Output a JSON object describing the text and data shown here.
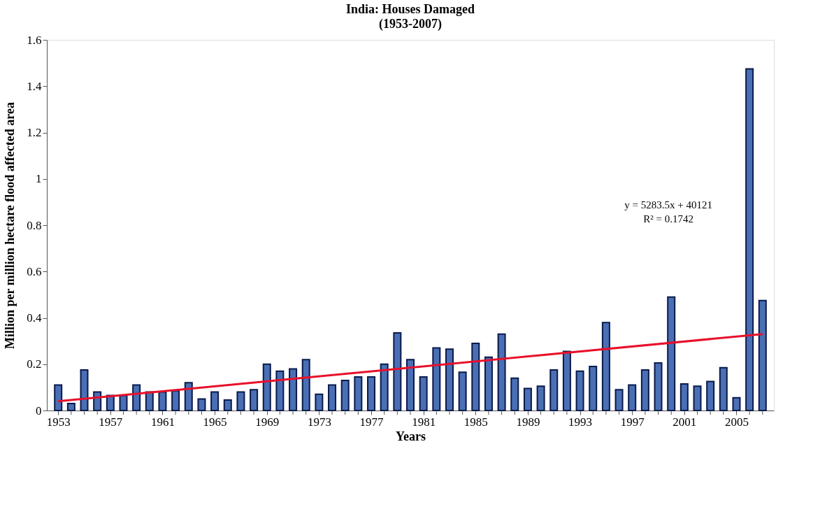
{
  "chart_data": {
    "type": "bar",
    "title": "India: Houses Damaged",
    "subtitle": "(1953-2007)",
    "xlabel": "Years",
    "ylabel": "Million per million hectare flood affected area",
    "x": [
      1953,
      1954,
      1955,
      1956,
      1957,
      1958,
      1959,
      1960,
      1961,
      1962,
      1963,
      1964,
      1965,
      1966,
      1967,
      1968,
      1969,
      1970,
      1971,
      1972,
      1973,
      1974,
      1975,
      1976,
      1977,
      1978,
      1979,
      1980,
      1981,
      1982,
      1983,
      1984,
      1985,
      1986,
      1987,
      1988,
      1989,
      1990,
      1991,
      1992,
      1993,
      1994,
      1995,
      1996,
      1997,
      1998,
      1999,
      2000,
      2001,
      2002,
      2003,
      2004,
      2005,
      2006,
      2007
    ],
    "series": [
      {
        "color": "#4a6fb5",
        "values": [
          0.11,
          0.03,
          0.175,
          0.08,
          0.065,
          0.065,
          0.11,
          0.08,
          0.08,
          0.085,
          0.12,
          0.05,
          0.08,
          0.045,
          0.08,
          0.09,
          0.2,
          0.17,
          0.18,
          0.22,
          0.07,
          0.11,
          0.13,
          0.145,
          0.145,
          0.2,
          0.335,
          0.22,
          0.145,
          0.27,
          0.265,
          0.165,
          0.29,
          0.23,
          0.33,
          0.14,
          0.095,
          0.105,
          0.175,
          0.255,
          0.17,
          0.19,
          0.38,
          0.09,
          0.11,
          0.175,
          0.205,
          0.49,
          0.115,
          0.105,
          0.125,
          0.185,
          0.055,
          1.475,
          0.475
        ]
      },
      {
        "type": "line",
        "color": "#e8102a",
        "x": [
          1953,
          2007
        ],
        "values": [
          0.04,
          0.33
        ]
      }
    ],
    "annotations": [
      "y = 5283.5x + 40121",
      "R² = 0.1742"
    ],
    "xlim": [
      1952.4,
      2007.6
    ],
    "xticks": [
      1953,
      {
        "value": 1954,
        "label": null
      },
      {
        "value": 1955,
        "label": null
      },
      {
        "value": 1956,
        "label": null
      },
      1957,
      {
        "value": 1958,
        "label": null
      },
      {
        "value": 1959,
        "label": null
      },
      {
        "value": 1960,
        "label": null
      },
      1961,
      {
        "value": 1962,
        "label": null
      },
      {
        "value": 1963,
        "label": null
      },
      {
        "value": 1964,
        "label": null
      },
      1965,
      {
        "value": 1966,
        "label": null
      },
      {
        "value": 1967,
        "label": null
      },
      {
        "value": 1968,
        "label": null
      },
      1969,
      {
        "value": 1970,
        "label": null
      },
      {
        "value": 1971,
        "label": null
      },
      {
        "value": 1972,
        "label": null
      },
      1973,
      {
        "value": 1974,
        "label": null
      },
      {
        "value": 1975,
        "label": null
      },
      {
        "value": 1976,
        "label": null
      },
      1977,
      {
        "value": 1978,
        "label": null
      },
      {
        "value": 1979,
        "label": null
      },
      {
        "value": 1980,
        "label": null
      },
      1981,
      {
        "value": 1982,
        "label": null
      },
      {
        "value": 1983,
        "label": null
      },
      {
        "value": 1984,
        "label": null
      },
      1985,
      {
        "value": 1986,
        "label": null
      },
      {
        "value": 1987,
        "label": null
      },
      {
        "value": 1988,
        "label": null
      },
      1989,
      {
        "value": 1990,
        "label": null
      },
      {
        "value": 1991,
        "label": null
      },
      {
        "value": 1992,
        "label": null
      },
      1993,
      {
        "value": 1994,
        "label": null
      },
      {
        "value": 1995,
        "label": null
      },
      {
        "value": 1996,
        "label": null
      },
      1997,
      {
        "value": 1998,
        "label": null
      },
      {
        "value": 1999,
        "label": null
      },
      {
        "value": 2000,
        "label": null
      },
      2001,
      {
        "value": 2002,
        "label": null
      },
      {
        "value": 2003,
        "label": null
      },
      {
        "value": 2004,
        "label": null
      },
      2005,
      {
        "value": 2006,
        "label": null
      },
      {
        "value": 2007,
        "label": null
      }
    ],
    "ylim": [
      0,
      1.6
    ],
    "yticks": [
      0,
      0.2,
      0.4,
      0.6,
      0.8,
      1,
      1.2,
      1.4,
      1.6
    ]
  }
}
